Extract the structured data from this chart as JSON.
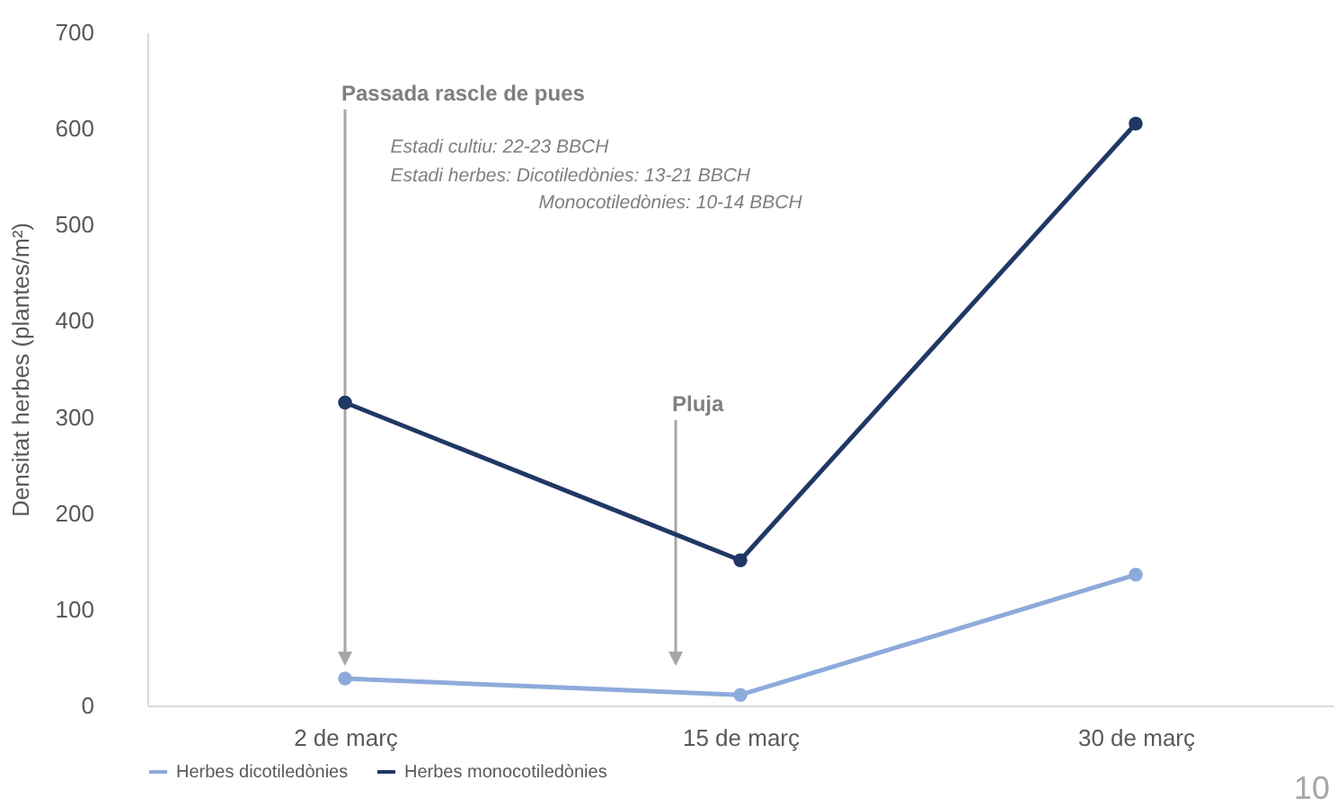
{
  "chart_data": {
    "type": "line",
    "ylabel": "Densitat herbes (plantes/m²)",
    "categories": [
      "2 de març",
      "15 de març",
      "30 de març"
    ],
    "series": [
      {
        "name": "Herbes dicotiledònies",
        "color": "#8eaadb",
        "values": [
          28,
          11,
          136
        ]
      },
      {
        "name": "Herbes monocotiledònies",
        "color": "#203864",
        "values": [
          315,
          151,
          605
        ]
      }
    ],
    "ylim": [
      0,
      700
    ],
    "yticks": [
      0,
      100,
      200,
      300,
      400,
      500,
      600,
      700
    ],
    "grid": false,
    "legend": "bottom",
    "marker": "circle",
    "annotations": [
      "Passada rascle de pues",
      "Pluja",
      "Estadi cultiu: 22-23 BBCH",
      "Estadi herbes: Dicotiledònies: 13-21 BBCH",
      "Monocotiledònies: 10-14 BBCH",
      "10"
    ]
  }
}
